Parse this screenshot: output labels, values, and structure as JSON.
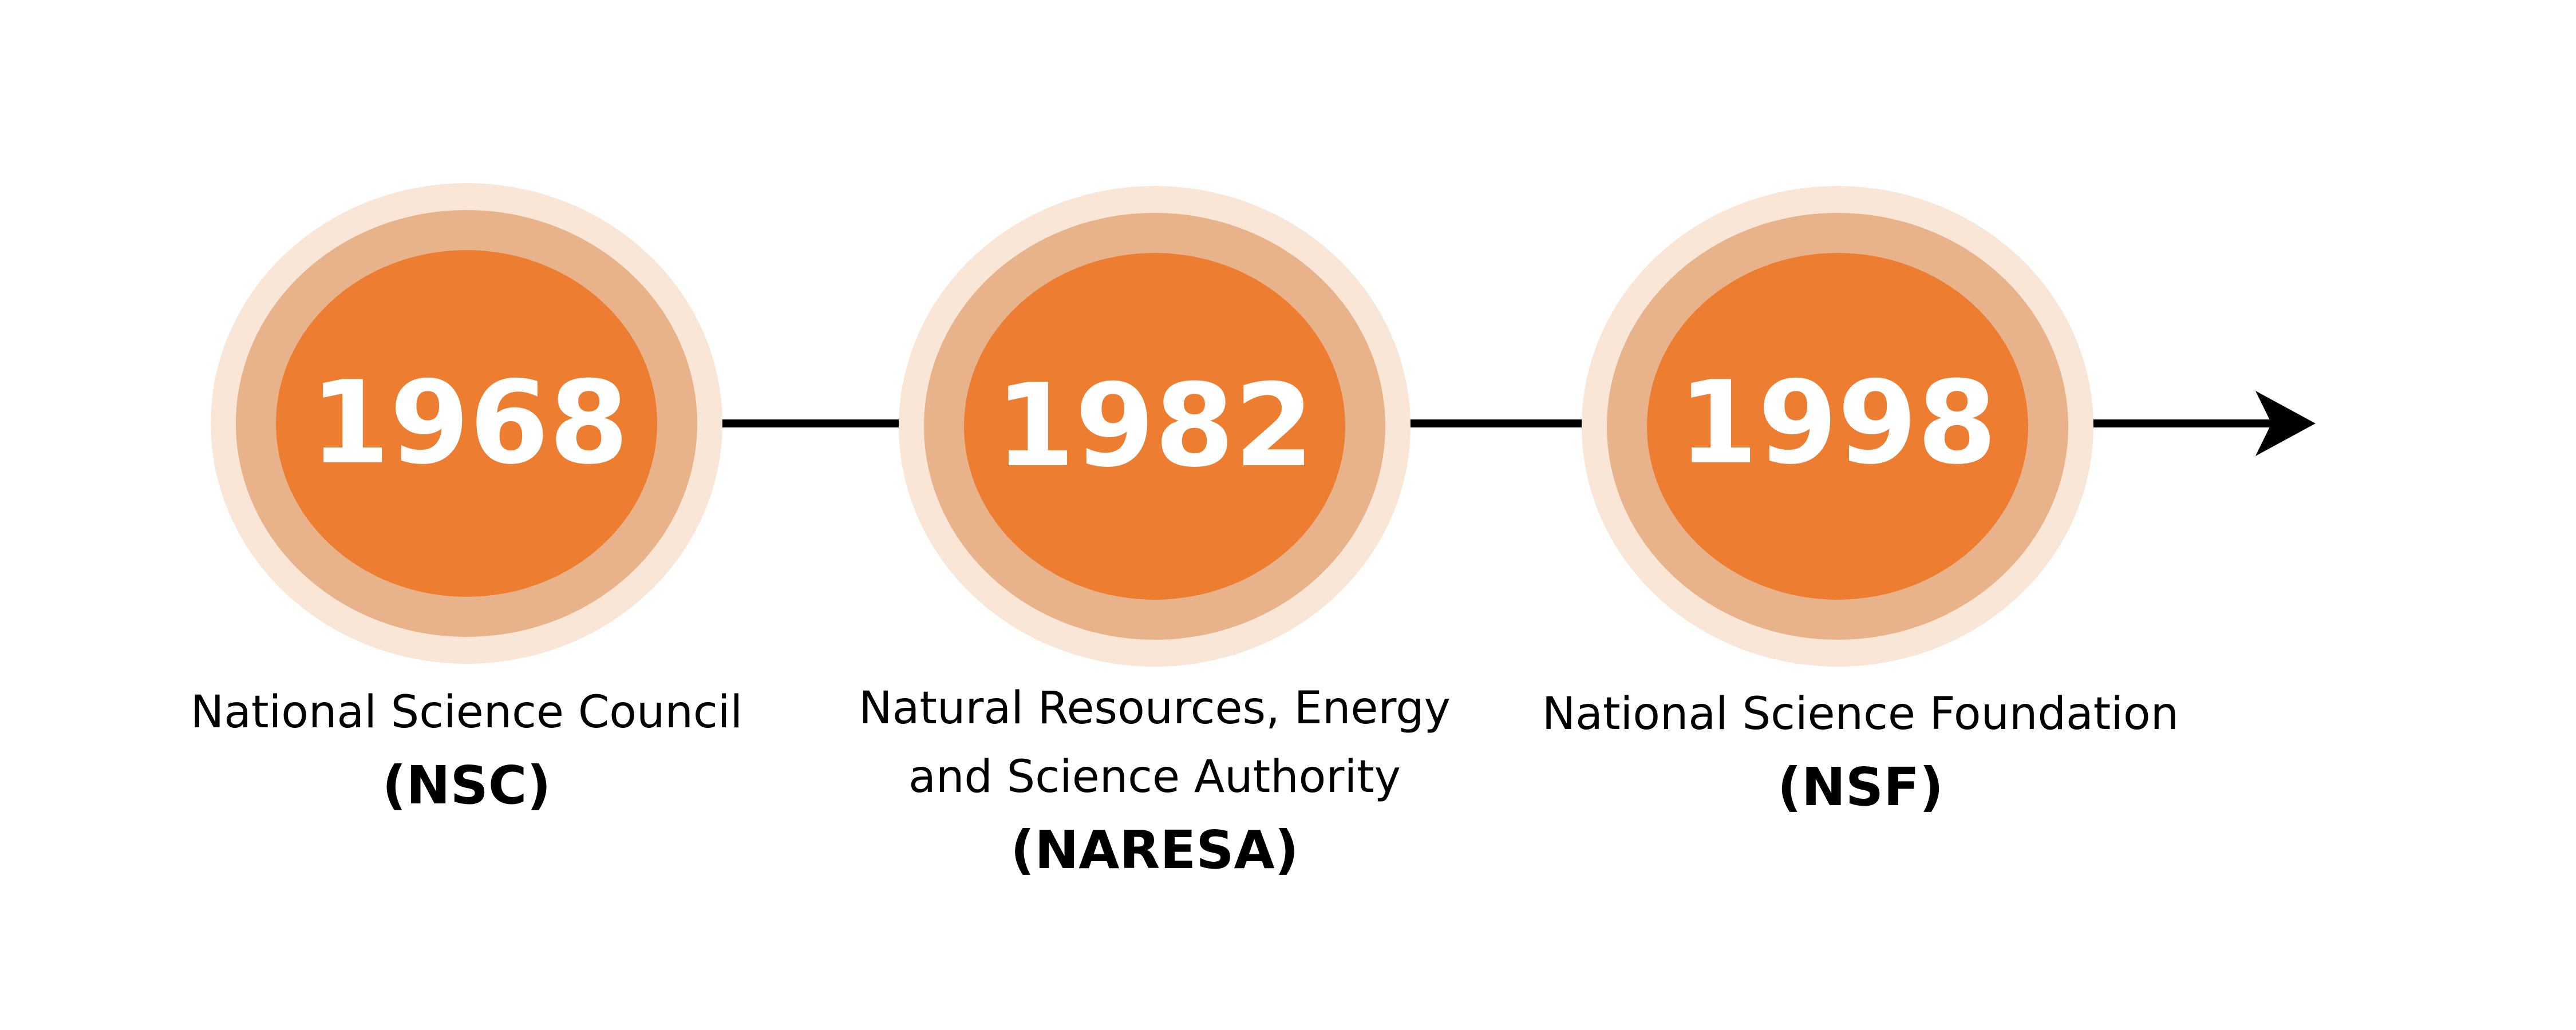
{
  "colors": {
    "outer_ring": "#fae6d6",
    "middle_ring": "#e8b38a",
    "inner_circle": "#ed7d31",
    "year_text": "#ffffff",
    "line": "#000000"
  },
  "milestones": [
    {
      "year": "1968",
      "name_lines": [
        "National Science Council"
      ],
      "abbreviation": "(NSC)"
    },
    {
      "year": "1982",
      "name_lines": [
        "Natural Resources, Energy",
        "and Science Authority"
      ],
      "abbreviation": "(NARESA)"
    },
    {
      "year": "1998",
      "name_lines": [
        "National Science Foundation"
      ],
      "abbreviation": "(NSF)"
    }
  ]
}
